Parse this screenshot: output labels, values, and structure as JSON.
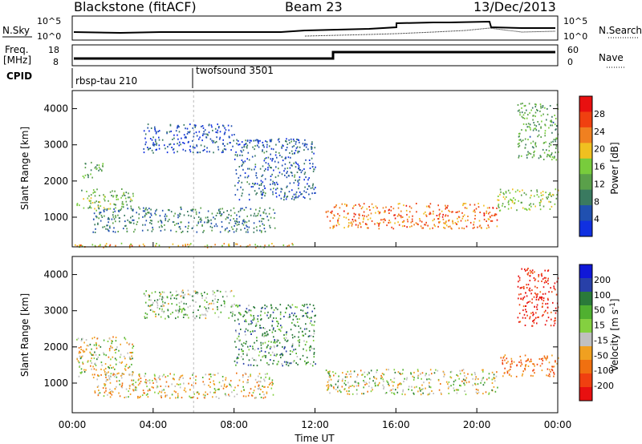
{
  "header": {
    "station": "Blackstone (fitACF)",
    "beam": "Beam 23",
    "date": "13/Dec/2013"
  },
  "top_panels": {
    "nsky_label": "N.Sky",
    "nsky_ticks": [
      "10^5",
      "10^0"
    ],
    "nsearch_label": "N.Search",
    "nsearch_ticks": [
      "10^5",
      "10^0"
    ],
    "freq_label_1": "Freq.",
    "freq_label_2": "[MHz]",
    "freq_ticks": [
      "18",
      "8"
    ],
    "nave_label": "Nave",
    "nave_ticks": [
      "60",
      "0"
    ],
    "cpid_label": "CPID",
    "cpid_segments": [
      {
        "name": "rbsp-tau 210",
        "start": "00:00"
      },
      {
        "name": "twofsound 3501",
        "start": "06:00"
      }
    ]
  },
  "colors": {
    "power": [
      "#1030e0",
      "#2050b0",
      "#3a7a60",
      "#5aa04a",
      "#78cc3c",
      "#f0c020",
      "#f08020",
      "#f04010",
      "#e81010"
    ],
    "velocity": [
      "#1018d8",
      "#2840a8",
      "#2a7a3a",
      "#50b030",
      "#84d040",
      "#c0c0c0",
      "#f0a020",
      "#f07010",
      "#f04010",
      "#e81010"
    ]
  },
  "chart_data": [
    {
      "type": "heatmap",
      "title": "Power",
      "ylabel": "Slant Range [km]",
      "yticks": [
        "1000",
        "2000",
        "3000",
        "4000"
      ],
      "ylim": [
        180,
        4500
      ],
      "xticks": [
        "00:00",
        "04:00",
        "08:00",
        "12:00",
        "16:00",
        "20:00",
        "00:00"
      ],
      "colorbar_label": "Power [dB]",
      "colorbar_ticks": [
        "4",
        "8",
        "12",
        "16",
        "20",
        "24",
        "28"
      ],
      "colorbar_range": [
        0,
        32
      ],
      "regions": [
        {
          "t0": 0.2,
          "t1": 3.0,
          "r0": 1200,
          "r1": 1800,
          "level": 14
        },
        {
          "t0": 0.5,
          "t1": 1.5,
          "r0": 2100,
          "r1": 2600,
          "level": 12
        },
        {
          "t0": 1.0,
          "t1": 10.0,
          "r0": 600,
          "r1": 1300,
          "level": 9
        },
        {
          "t0": 3.5,
          "t1": 8.0,
          "r0": 2800,
          "r1": 3600,
          "level": 5
        },
        {
          "t0": 8.0,
          "t1": 12.0,
          "r0": 1500,
          "r1": 3200,
          "level": 6
        },
        {
          "t0": 12.5,
          "t1": 21.0,
          "r0": 700,
          "r1": 1400,
          "level": 24
        },
        {
          "t0": 21.0,
          "t1": 24.0,
          "r0": 1200,
          "r1": 1800,
          "level": 16
        },
        {
          "t0": 22.0,
          "t1": 24.0,
          "r0": 2600,
          "r1": 4200,
          "level": 12
        },
        {
          "t0": 0.0,
          "t1": 11.0,
          "r0": 180,
          "r1": 300,
          "level": 20
        }
      ]
    },
    {
      "type": "heatmap",
      "title": "Velocity",
      "ylabel": "Slant Range [km]",
      "yticks": [
        "1000",
        "2000",
        "3000",
        "4000"
      ],
      "ylim": [
        180,
        4500
      ],
      "xticks": [
        "00:00",
        "04:00",
        "08:00",
        "12:00",
        "16:00",
        "20:00",
        "00:00"
      ],
      "xlabel": "Time UT",
      "colorbar_label": "Velocity [m s^-1]",
      "colorbar_ticks": [
        "200",
        "100",
        "50",
        "15",
        "-15",
        "-50",
        "-100",
        "-200"
      ],
      "colorbar_range": [
        -250,
        250
      ],
      "regions": [
        {
          "t0": 0.2,
          "t1": 3.0,
          "r0": 1200,
          "r1": 2300,
          "velocity": 0
        },
        {
          "t0": 1.0,
          "t1": 10.0,
          "r0": 600,
          "r1": 1300,
          "velocity": -20
        },
        {
          "t0": 3.5,
          "t1": 8.0,
          "r0": 2800,
          "r1": 3600,
          "velocity": 30
        },
        {
          "t0": 8.0,
          "t1": 12.0,
          "r0": 1500,
          "r1": 3200,
          "velocity": 60
        },
        {
          "t0": 12.5,
          "t1": 21.0,
          "r0": 700,
          "r1": 1400,
          "velocity": 0
        },
        {
          "t0": 21.0,
          "t1": 24.0,
          "r0": 1200,
          "r1": 1800,
          "velocity": -80
        },
        {
          "t0": 22.0,
          "t1": 24.0,
          "r0": 2600,
          "r1": 4200,
          "velocity": -150
        }
      ]
    }
  ]
}
